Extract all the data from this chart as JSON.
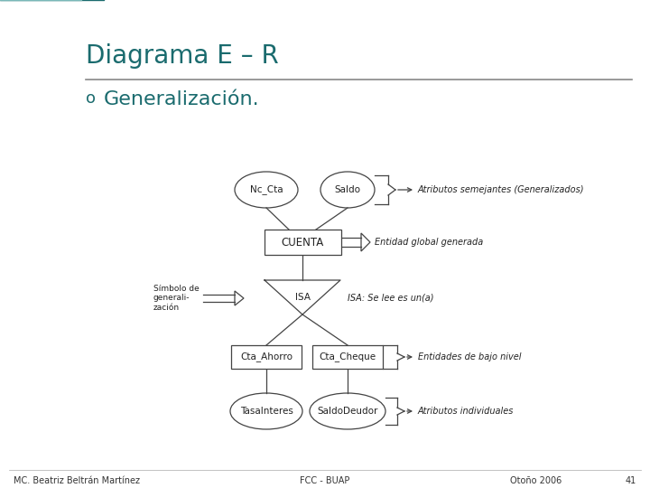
{
  "title": "Diagrama E – R",
  "subtitle": "Generalización.",
  "bullet": "o",
  "bg_color": "#ffffff",
  "title_color": "#1a6b6e",
  "subtitle_color": "#1a6b6e",
  "footer_left": "MC. Beatriz Beltrán Martínez",
  "footer_center": "FCC - BUAP",
  "footer_right": "Otoño 2006",
  "footer_number": "41",
  "ann_attr_top": "Atributos semejantes (Generalizados)",
  "ann_entidad": "Entidad global generada",
  "ann_isa": "ISA: Se lee es un(a)",
  "ann_bajo": "Entidades de bajo nivel",
  "ann_indiv": "Atributos individuales",
  "symbol_text": "Símbolo de\ngenerali-\nzación",
  "lc": "#444444",
  "lw": 0.9,
  "circle_outer_color": "#1a6b6e",
  "circle_inner_color": "#7ab8b8"
}
